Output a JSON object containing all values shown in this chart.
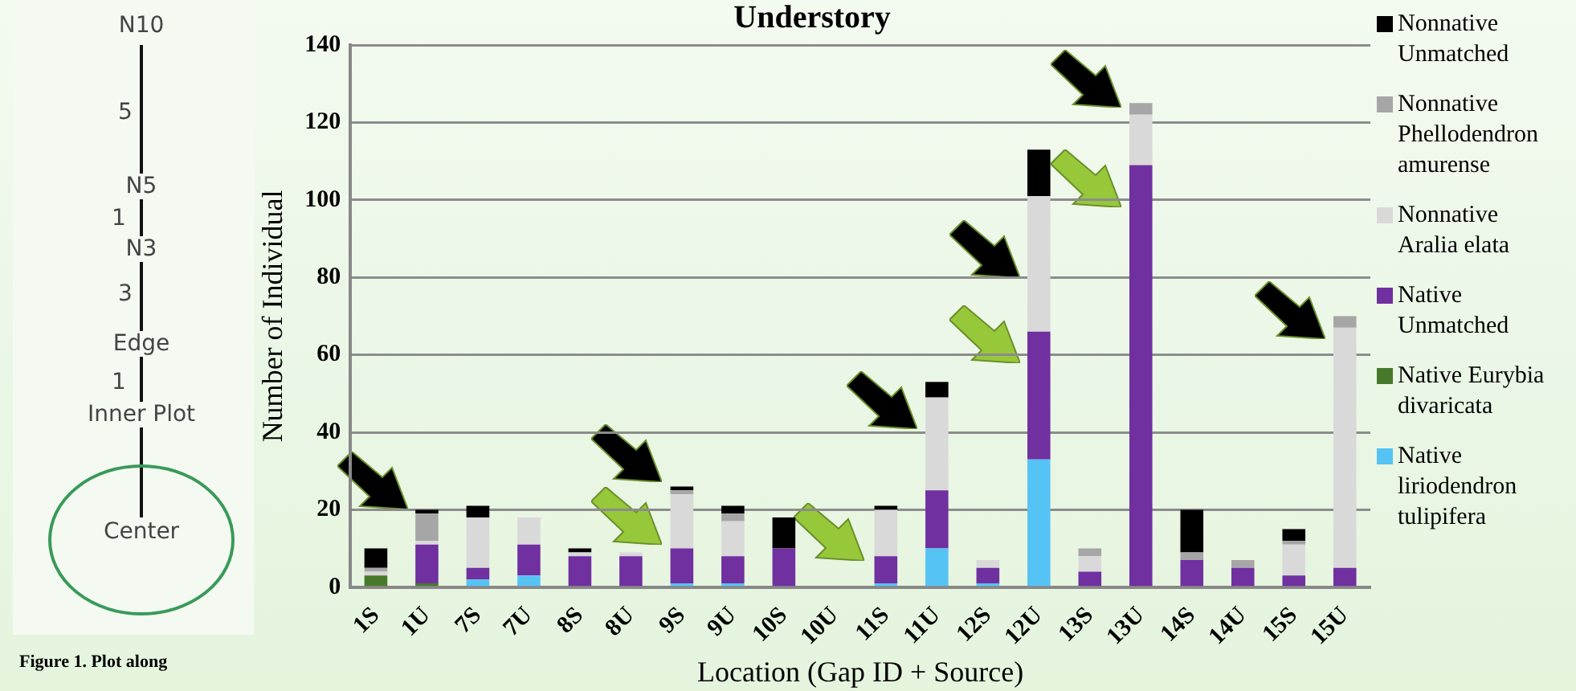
{
  "chart_data": {
    "type": "bar",
    "stacked": true,
    "title": "Understory",
    "xlabel": "Location (Gap ID + Source)",
    "ylabel": "Number of Individual",
    "categories": [
      "1S",
      "1U",
      "7S",
      "7U",
      "8S",
      "8U",
      "9S",
      "9U",
      "10S",
      "10U",
      "11S",
      "11U",
      "12S",
      "12U",
      "13S",
      "13U",
      "14S",
      "14U",
      "15S",
      "15U"
    ],
    "series": [
      {
        "name": "Native liriodendron tulipifera",
        "color": "#56c3f5",
        "values": [
          0,
          0,
          2,
          3,
          0,
          0,
          1,
          1,
          0,
          0,
          1,
          10,
          1,
          33,
          0,
          0,
          0,
          0,
          0,
          0
        ]
      },
      {
        "name": "Native Eurybia divaricata",
        "color": "#467a2a",
        "values": [
          3,
          1,
          0,
          0,
          0,
          0,
          0,
          0,
          0,
          0,
          0,
          0,
          0,
          0,
          0,
          0,
          0,
          0,
          0,
          0
        ]
      },
      {
        "name": "Native Unmatched",
        "color": "#7030a0",
        "values": [
          0,
          10,
          3,
          8,
          8,
          8,
          9,
          7,
          10,
          0,
          7,
          15,
          4,
          33,
          4,
          109,
          7,
          5,
          3,
          5
        ]
      },
      {
        "name": "Nonnative Aralia elata",
        "color": "#d9d9d9",
        "values": [
          1,
          1,
          13,
          7,
          1,
          1,
          14,
          9,
          0,
          0,
          12,
          24,
          2,
          35,
          4,
          13,
          0,
          0,
          8,
          62
        ]
      },
      {
        "name": "Nonnative Phellodendron amurense",
        "color": "#a6a6a6",
        "values": [
          1,
          7,
          0,
          0,
          0,
          0,
          1,
          2,
          0,
          0,
          0,
          0,
          0,
          0,
          2,
          3,
          2,
          2,
          1,
          3
        ]
      },
      {
        "name": "Nonnative Unmatched",
        "color": "#000000",
        "values": [
          5,
          1,
          3,
          0,
          1,
          0,
          1,
          2,
          8,
          0,
          1,
          4,
          0,
          12,
          0,
          0,
          11,
          0,
          3,
          0
        ]
      }
    ],
    "ylim": [
      0,
      140
    ],
    "yticks": [
      0,
      20,
      40,
      60,
      80,
      100,
      120,
      140
    ],
    "grid": "y",
    "legend": "right",
    "annotations": [
      "N10",
      "5",
      "N5",
      "1",
      "N3",
      "3",
      "Edge",
      "1",
      "Inner Plot",
      "Center",
      "Figure 1. Plot along"
    ]
  }
}
